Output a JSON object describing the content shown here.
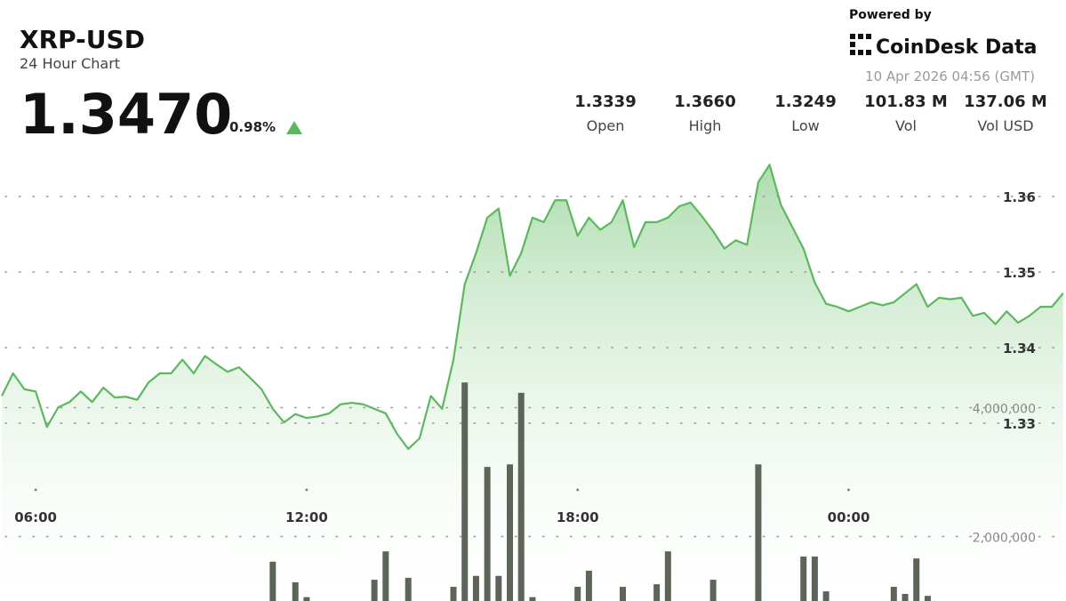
{
  "header": {
    "title": "XRP-USD",
    "subtitle": "24 Hour Chart",
    "price": "1.3470",
    "change": "0.98%",
    "powered_by": "Powered by",
    "brand": "CoinDesk Data",
    "timestamp": "10 Apr 2026 04:56 (GMT)",
    "stats": [
      {
        "value": "1.3339",
        "label": "Open"
      },
      {
        "value": "1.3660",
        "label": "High"
      },
      {
        "value": "1.3249",
        "label": "Low"
      },
      {
        "value": "101.83 M",
        "label": "Vol"
      },
      {
        "value": "137.06 M",
        "label": "Vol USD"
      }
    ]
  },
  "chart_data": {
    "type": "line",
    "xlim": [
      0,
      94.25
    ],
    "xticks": [
      {
        "value": 3,
        "label": "06:00"
      },
      {
        "value": 27,
        "label": "12:00"
      },
      {
        "value": 51,
        "label": "18:00"
      },
      {
        "value": 75,
        "label": "00:00"
      }
    ],
    "ylim": [
      1.31,
      1.37
    ],
    "yticks": [
      1.33,
      1.34,
      1.35,
      1.36
    ],
    "y2lim": [
      1000000,
      5000000
    ],
    "y2ticks": [
      {
        "value": 2000000,
        "label": "2,000,000"
      },
      {
        "value": 4000000,
        "label": "4,000,000"
      }
    ],
    "grid": true,
    "series": [
      {
        "type": "line",
        "color": "#5cb85f",
        "values": [
          1.3336,
          1.3366,
          1.3345,
          1.3342,
          1.3295,
          1.3321,
          1.3328,
          1.3342,
          1.3328,
          1.3347,
          1.3334,
          1.3335,
          1.3331,
          1.3354,
          1.3366,
          1.3366,
          1.3384,
          1.3366,
          1.3389,
          1.3378,
          1.3368,
          1.3374,
          1.336,
          1.3345,
          1.3319,
          1.3301,
          1.3312,
          1.3307,
          1.3309,
          1.3313,
          1.3325,
          1.3327,
          1.3325,
          1.3319,
          1.3313,
          1.3286,
          1.3266,
          1.328,
          1.3336,
          1.3319,
          1.3384,
          1.3484,
          1.3525,
          1.3572,
          1.3584,
          1.3495,
          1.3525,
          1.3572,
          1.3566,
          1.3595,
          1.3595,
          1.3548,
          1.3572,
          1.3556,
          1.3566,
          1.3595,
          1.3533,
          1.3566,
          1.3566,
          1.3572,
          1.3587,
          1.3592,
          1.3574,
          1.3554,
          1.3531,
          1.3542,
          1.3536,
          1.3619,
          1.3642,
          1.3589,
          1.356,
          1.3531,
          1.3486,
          1.3458,
          1.3454,
          1.3448,
          1.3454,
          1.346,
          1.3456,
          1.346,
          1.3472,
          1.3484,
          1.3454,
          1.3466,
          1.3464,
          1.3466,
          1.3442,
          1.3446,
          1.3431,
          1.3448,
          1.3433,
          1.3442,
          1.3454,
          1.3454,
          1.3472
        ]
      },
      {
        "type": "bar",
        "axis": "y2",
        "color": "#5d6458",
        "values": [
          null,
          null,
          null,
          null,
          null,
          null,
          null,
          null,
          null,
          null,
          null,
          null,
          null,
          null,
          null,
          null,
          null,
          null,
          null,
          null,
          null,
          null,
          null,
          null,
          1610000,
          null,
          1290000,
          1060000,
          null,
          null,
          null,
          null,
          null,
          1330000,
          1770000,
          null,
          1360000,
          null,
          null,
          null,
          1220000,
          4390000,
          1390000,
          3080000,
          1390000,
          3120000,
          4230000,
          1060000,
          null,
          null,
          null,
          1220000,
          1470000,
          null,
          null,
          1220000,
          null,
          null,
          1260000,
          1770000,
          null,
          null,
          null,
          1330000,
          null,
          null,
          null,
          3120000,
          null,
          null,
          null,
          1690000,
          1690000,
          1150000,
          null,
          null,
          null,
          null,
          null,
          1220000,
          1110000,
          1660000,
          1080000,
          null,
          null,
          null,
          null,
          null,
          null,
          null,
          null,
          null,
          null,
          null,
          null
        ]
      }
    ]
  }
}
